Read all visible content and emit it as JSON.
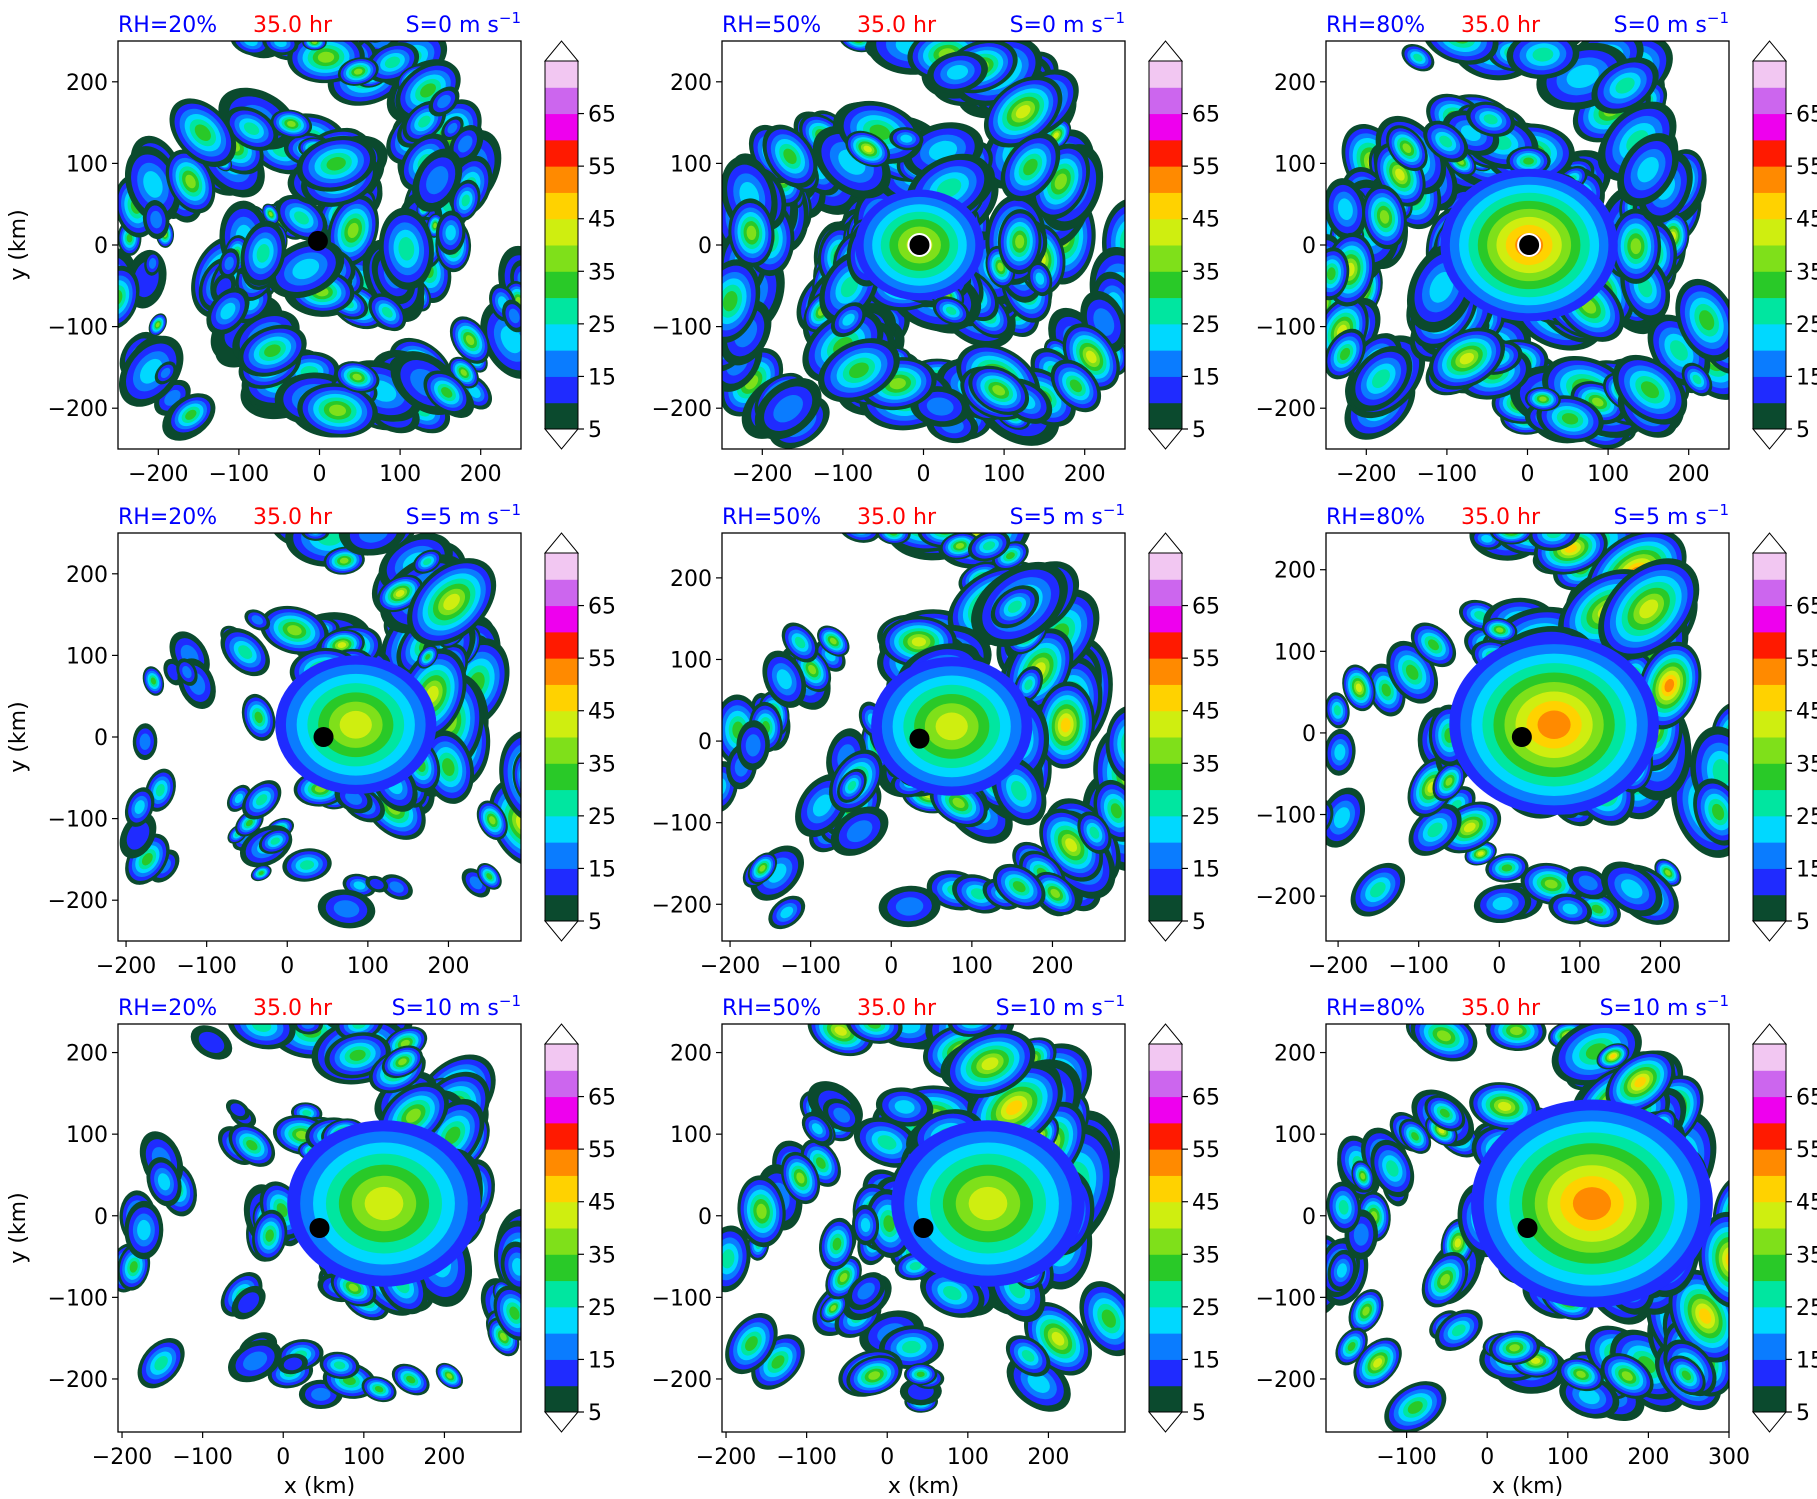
{
  "colorbar": {
    "levels": [
      5,
      10,
      15,
      20,
      25,
      30,
      35,
      40,
      45,
      50,
      55,
      60,
      65,
      70
    ],
    "tick_labels": [
      "5",
      "15",
      "25",
      "35",
      "45",
      "55",
      "65"
    ],
    "colors": [
      "#0b4a2e",
      "#1f2bff",
      "#0a7cff",
      "#00d8ff",
      "#00e6a0",
      "#29c928",
      "#7fe01a",
      "#cfee10",
      "#ffd200",
      "#ff8a00",
      "#ff1a00",
      "#ee00ee",
      "#cc66ee",
      "#f2c7f2"
    ],
    "extend": "both"
  },
  "colors": {
    "rh_label": "#0000ff",
    "time_label": "#ff0000",
    "shear_label": "#0000ff",
    "center_marker": "#000000"
  },
  "axis_labels": {
    "x": "x (km)",
    "y": "y (km)"
  },
  "chart_data": [
    {
      "type": "heatmap",
      "rh": "RH=20%",
      "time": "35.0 hr",
      "shear": "S=0 m s",
      "shear_exp": "−1",
      "xlim": [
        -250,
        250
      ],
      "ylim": [
        -250,
        250
      ],
      "xticks": [
        -200,
        -100,
        0,
        100,
        200
      ],
      "yticks": [
        -200,
        -100,
        0,
        100,
        200
      ],
      "center": [
        -2,
        5
      ],
      "xlabel": "",
      "ylabel": "y (km)"
    },
    {
      "type": "heatmap",
      "rh": "RH=50%",
      "time": "35.0 hr",
      "shear": "S=0 m s",
      "shear_exp": "−1",
      "xlim": [
        -250,
        250
      ],
      "ylim": [
        -250,
        250
      ],
      "xticks": [
        -200,
        -100,
        0,
        100,
        200
      ],
      "yticks": [
        -200,
        -100,
        0,
        100,
        200
      ],
      "center": [
        -5,
        0
      ],
      "xlabel": "",
      "ylabel": ""
    },
    {
      "type": "heatmap",
      "rh": "RH=80%",
      "time": "35.0 hr",
      "shear": "S=0 m s",
      "shear_exp": "−1",
      "xlim": [
        -250,
        250
      ],
      "ylim": [
        -250,
        250
      ],
      "xticks": [
        -200,
        -100,
        0,
        100,
        200
      ],
      "yticks": [
        -200,
        -100,
        0,
        100,
        200
      ],
      "center": [
        2,
        0
      ],
      "xlabel": "",
      "ylabel": ""
    },
    {
      "type": "heatmap",
      "rh": "RH=20%",
      "time": "35.0 hr",
      "shear": "S=5 m s",
      "shear_exp": "−1",
      "xlim": [
        -210,
        290
      ],
      "ylim": [
        -250,
        250
      ],
      "xticks": [
        -200,
        -100,
        0,
        100,
        200
      ],
      "yticks": [
        -200,
        -100,
        0,
        100,
        200
      ],
      "center": [
        45,
        0
      ],
      "xlabel": "",
      "ylabel": "y (km)"
    },
    {
      "type": "heatmap",
      "rh": "RH=50%",
      "time": "35.0 hr",
      "shear": "S=5 m s",
      "shear_exp": "−1",
      "xlim": [
        -210,
        290
      ],
      "ylim": [
        -245,
        255
      ],
      "xticks": [
        -200,
        -100,
        0,
        100,
        200
      ],
      "yticks": [
        -200,
        -100,
        0,
        100,
        200
      ],
      "center": [
        35,
        3
      ],
      "xlabel": "",
      "ylabel": ""
    },
    {
      "type": "heatmap",
      "rh": "RH=80%",
      "time": "35.0 hr",
      "shear": "S=5 m s",
      "shear_exp": "−1",
      "xlim": [
        -215,
        285
      ],
      "ylim": [
        -255,
        245
      ],
      "xticks": [
        -200,
        -100,
        0,
        100,
        200
      ],
      "yticks": [
        -200,
        -100,
        0,
        100,
        200
      ],
      "center": [
        28,
        -5
      ],
      "xlabel": "",
      "ylabel": ""
    },
    {
      "type": "heatmap",
      "rh": "RH=20%",
      "time": "35.0 hr",
      "shear": "S=10 m s",
      "shear_exp": "−1",
      "xlim": [
        -205,
        295
      ],
      "ylim": [
        -265,
        235
      ],
      "xticks": [
        -200,
        -100,
        0,
        100,
        200
      ],
      "yticks": [
        -200,
        -100,
        0,
        100,
        200
      ],
      "center": [
        45,
        -15
      ],
      "xlabel": "x (km)",
      "ylabel": "y (km)"
    },
    {
      "type": "heatmap",
      "rh": "RH=50%",
      "time": "35.0 hr",
      "shear": "S=10 m s",
      "shear_exp": "−1",
      "xlim": [
        -205,
        295
      ],
      "ylim": [
        -265,
        235
      ],
      "xticks": [
        -200,
        -100,
        0,
        100,
        200
      ],
      "yticks": [
        -200,
        -100,
        0,
        100,
        200
      ],
      "center": [
        45,
        -15
      ],
      "xlabel": "x (km)",
      "ylabel": ""
    },
    {
      "type": "heatmap",
      "rh": "RH=80%",
      "time": "35.0 hr",
      "shear": "S=10 m s",
      "shear_exp": "−1",
      "xlim": [
        -200,
        300
      ],
      "ylim": [
        -265,
        235
      ],
      "xticks": [
        -100,
        0,
        100,
        200,
        300
      ],
      "yticks": [
        -200,
        -100,
        0,
        100,
        200
      ],
      "center": [
        50,
        -15
      ],
      "xlabel": "x (km)",
      "ylabel": ""
    }
  ]
}
